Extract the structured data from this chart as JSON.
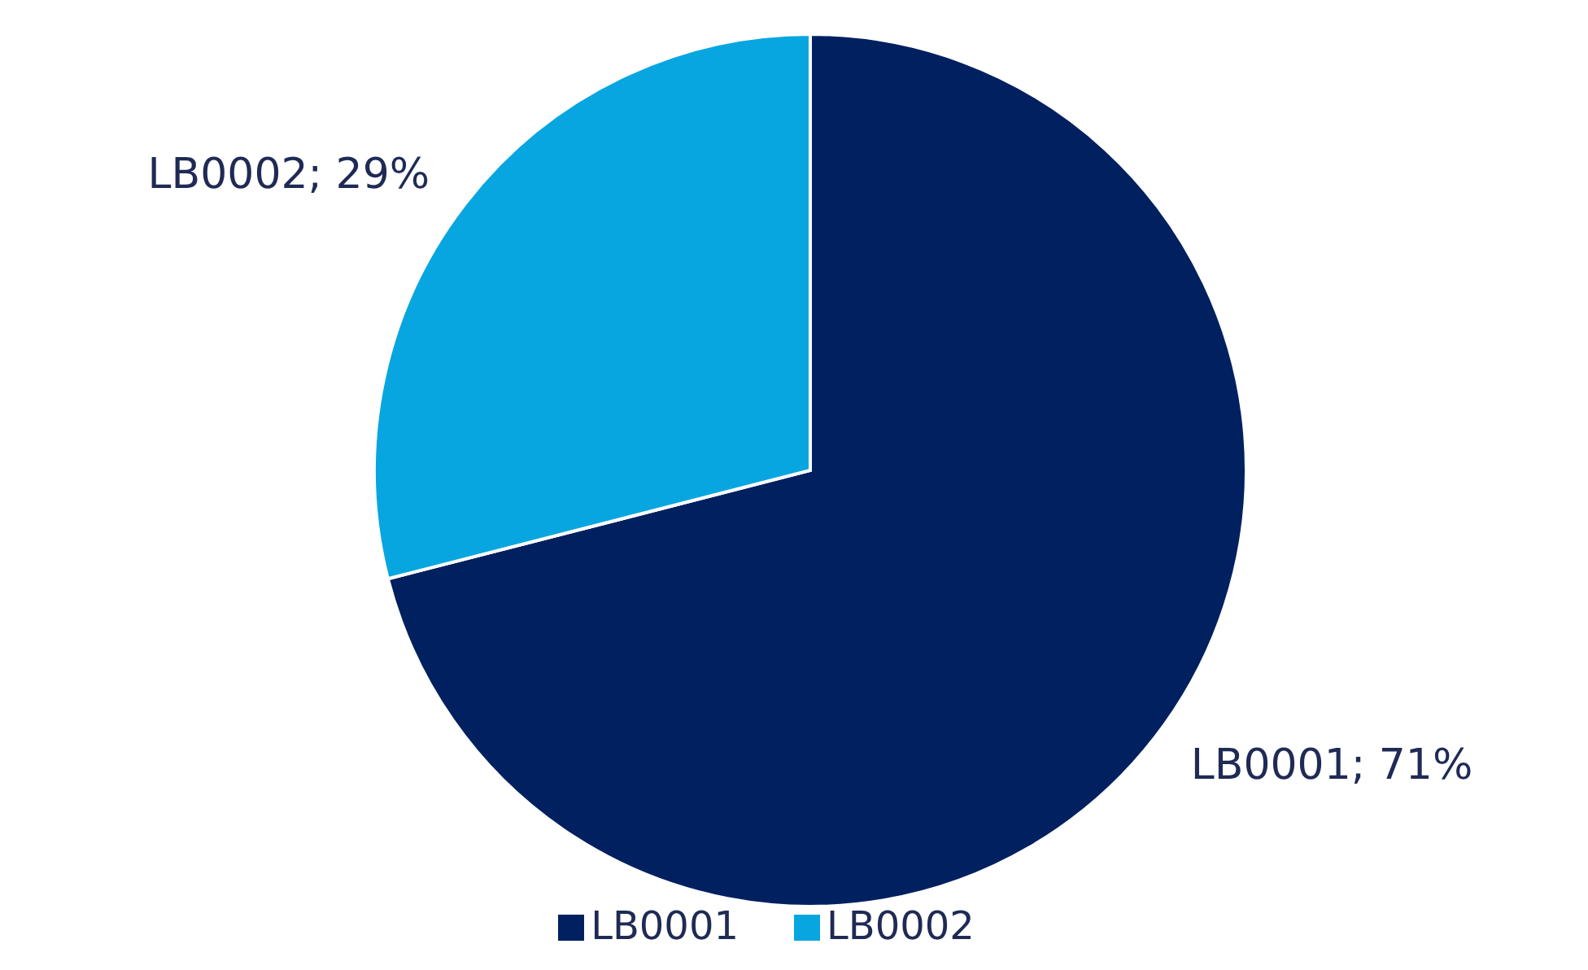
{
  "chart_data": {
    "type": "pie",
    "categories": [
      "LB0001",
      "LB0002"
    ],
    "values": [
      71,
      29
    ],
    "colors": [
      "#002060",
      "#08a6e0"
    ],
    "value_labels": [
      "LB0001; 71%",
      "LB0002; 29%"
    ],
    "legend": "bottom"
  }
}
